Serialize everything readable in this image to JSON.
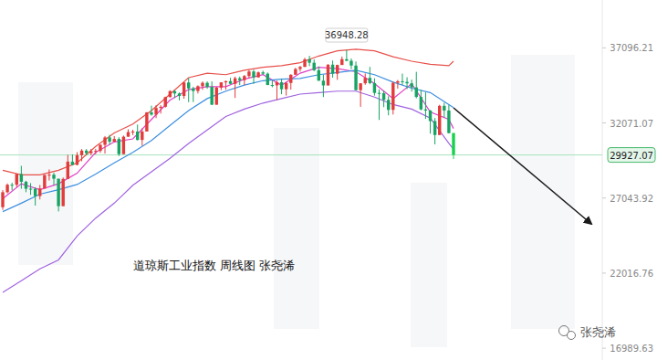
{
  "chart_data": {
    "type": "candlestick",
    "title": "道琼斯工业指数 周线图 张尧浠",
    "watermark": "张尧浠",
    "categories": [
      null,
      null,
      null,
      null,
      null,
      null,
      null,
      null,
      null,
      null,
      null,
      null,
      null,
      null,
      null,
      null,
      null,
      null,
      null,
      null,
      null,
      null,
      null,
      null,
      null,
      null,
      null,
      null,
      null,
      null,
      null,
      null,
      null,
      null,
      null,
      null,
      null,
      null,
      null,
      null,
      null,
      null,
      null,
      null,
      null,
      null,
      null,
      null,
      null,
      null,
      null,
      null,
      null,
      null,
      null,
      null,
      null,
      null,
      null,
      null,
      null,
      null,
      null,
      null,
      null,
      null,
      null,
      null,
      null,
      null,
      null,
      null,
      null,
      null,
      null,
      null,
      null,
      null,
      null,
      null,
      null,
      null,
      null,
      null,
      null,
      null,
      null,
      null,
      null,
      null,
      null,
      null,
      null,
      null,
      null,
      null,
      null,
      null
    ],
    "open": [
      26428,
      27433,
      27931,
      27930,
      28654,
      28133,
      27666,
      27657,
      27174,
      27682,
      28587,
      28606,
      28335,
      26501,
      28323,
      29479,
      29263,
      29910,
      30218,
      30046,
      30179,
      30199,
      30606,
      31098,
      30814,
      30997,
      29983,
      31148,
      31458,
      31494,
      30932,
      31496,
      32779,
      32628,
      33072,
      33153,
      33801,
      34200,
      34043,
      33875,
      34778,
      34382,
      34208,
      34529,
      34756,
      34480,
      33290,
      34434,
      34786,
      34870,
      34688,
      35062,
      34935,
      35209,
      35515,
      35120,
      35456,
      35369,
      34608,
      34584,
      34798,
      34326,
      34746,
      35295,
      35677,
      35820,
      36328,
      36100,
      35602,
      34899,
      34580,
      35971,
      35365,
      35951,
      36338,
      36232,
      35912,
      34265,
      34725,
      35089,
      34738,
      34079,
      34059,
      33615,
      32944,
      34755,
      34861,
      34818,
      34721,
      34451,
      33811,
      32977,
      32899,
      32197,
      31262,
      33213,
      32900,
      31393
    ],
    "high": [
      27574,
      28018,
      28070,
      28655,
      29199,
      28197,
      28042,
      27757,
      27917,
      28598,
      28958,
      28732,
      28335,
      28414,
      29933,
      29964,
      30116,
      30320,
      30319,
      30325,
      30338,
      30637,
      31193,
      31272,
      31188,
      31111,
      31223,
      31643,
      31614,
      31961,
      31705,
      32793,
      33227,
      33259,
      33259,
      33830,
      34257,
      34256,
      34112,
      34811,
      35091,
      34494,
      34588,
      34849,
      34849,
      34849,
      34488,
      34787,
      34893,
      35091,
      35171,
      35171,
      35283,
      35632,
      35631,
      35510,
      35565,
      35446,
      34936,
      34898,
      35008,
      34814,
      35329,
      35765,
      35893,
      36432,
      36566,
      36321,
      35860,
      35300,
      35999,
      36248,
      35970,
      36514,
      36948.28,
      36385,
      36185,
      34728,
      35384,
      35824,
      35061,
      34307,
      34237,
      33856,
      34835,
      34947,
      35372,
      35128,
      34967,
      35493,
      34287,
      34117,
      32935,
      32399,
      33284,
      33417,
      33272,
      31394
    ],
    "low": [
      26247,
      27355,
      27559,
      27768,
      27664,
      27434,
      27256,
      26537,
      26949,
      27681,
      28215,
      27900,
      26144,
      26501,
      28323,
      29223,
      29232,
      29505,
      29911,
      29920,
      29972,
      30070,
      30020,
      30612,
      30811,
      29857,
      29983,
      31148,
      31257,
      30900,
      30547,
      31496,
      32555,
      32394,
      32697,
      33096,
      33774,
      33742,
      33578,
      33689,
      33462,
      33471,
      34038,
      34287,
      34357,
      33271,
      33290,
      34268,
      34296,
      34661,
      33742,
      34605,
      34604,
      35066,
      34690,
      35117,
      35285,
      34603,
      34460,
      33613,
      33994,
      33900,
      34298,
      35295,
      35500,
      35820,
      35870,
      35537,
      34894,
      33800,
      34580,
      35097,
      34952,
      35951,
      36201,
      35667,
      34262,
      33150,
      34623,
      34660,
      33897,
      32272,
      33130,
      32578,
      32633,
      34362,
      34618,
      34336,
      34171,
      33718,
      32913,
      32339,
      31353,
      30636,
      31253,
      32426,
      31362,
      29653
    ],
    "close": [
      27433,
      27931,
      27930,
      28654,
      28133,
      27666,
      27657,
      27174,
      27682,
      28587,
      28606,
      28335,
      26501,
      28323,
      29479,
      29263,
      29910,
      30218,
      30046,
      30179,
      30199,
      30606,
      31098,
      30814,
      30997,
      29983,
      31148,
      31458,
      31494,
      30932,
      31496,
      32779,
      32628,
      33072,
      33153,
      33801,
      34200,
      34043,
      33875,
      34778,
      34382,
      34208,
      34529,
      34756,
      34480,
      33290,
      34434,
      34786,
      34870,
      34688,
      35062,
      34935,
      35209,
      35515,
      35120,
      35456,
      35369,
      34608,
      34584,
      34798,
      34326,
      34746,
      35295,
      35677,
      35820,
      36328,
      36100,
      35602,
      34899,
      34580,
      35971,
      35365,
      35951,
      36338,
      36232,
      35912,
      34265,
      34725,
      35089,
      34738,
      34079,
      34059,
      33615,
      32944,
      34755,
      34861,
      34818,
      34721,
      34451,
      33811,
      32977,
      32899,
      32197,
      31262,
      33213,
      32900,
      31393,
      29927.07
    ],
    "series": [
      {
        "type": "line",
        "color": "#e8504a",
        "x": [
          0,
          4,
          8,
          12,
          16,
          20,
          24,
          28,
          32,
          36,
          40,
          44,
          48,
          52,
          56,
          60,
          64,
          68,
          72,
          76,
          80,
          84,
          88,
          92,
          96,
          97
        ],
        "values": [
          28900,
          28600,
          28600,
          28900,
          29400,
          30500,
          31400,
          32000,
          32900,
          34000,
          35100,
          35400,
          35300,
          35600,
          35800,
          35900,
          36100,
          36550,
          36900,
          37000,
          36900,
          36500,
          36200,
          36000,
          35900,
          36200
        ]
      },
      {
        "type": "line",
        "color": "#e040c8",
        "x": [
          0,
          4,
          8,
          12,
          16,
          20,
          24,
          28,
          32,
          36,
          40,
          44,
          48,
          52,
          56,
          60,
          64,
          68,
          72,
          76,
          80,
          84,
          88,
          92,
          96,
          97
        ],
        "values": [
          27000,
          28000,
          27600,
          28000,
          28700,
          30100,
          30800,
          31000,
          32300,
          33600,
          34300,
          34500,
          34500,
          35000,
          35300,
          34600,
          35400,
          35800,
          35700,
          35500,
          34700,
          33700,
          34700,
          32800,
          32300,
          31700
        ]
      },
      {
        "type": "line",
        "color": "#3d8fe0",
        "x": [
          0,
          4,
          8,
          12,
          16,
          20,
          24,
          28,
          32,
          36,
          40,
          44,
          48,
          52,
          56,
          60,
          64,
          68,
          72,
          76,
          80,
          84,
          88,
          92,
          96,
          97
        ],
        "values": [
          26130,
          26700,
          27300,
          27600,
          27950,
          28650,
          29400,
          30100,
          30900,
          31900,
          32900,
          33700,
          34200,
          34600,
          34900,
          35000,
          35050,
          35300,
          35450,
          35600,
          35300,
          34800,
          34400,
          34100,
          33300,
          33100
        ]
      },
      {
        "type": "line",
        "color": "#a063e0",
        "x": [
          0,
          4,
          8,
          12,
          16,
          20,
          24,
          28,
          32,
          36,
          40,
          44,
          48,
          52,
          56,
          60,
          64,
          68,
          72,
          76,
          80,
          84,
          88,
          92,
          96,
          97
        ],
        "values": [
          20730,
          21500,
          22300,
          22900,
          24500,
          25700,
          26700,
          27900,
          28800,
          29700,
          30700,
          31600,
          32500,
          33000,
          33400,
          33700,
          34000,
          34100,
          34200,
          34200,
          33800,
          33300,
          33000,
          32400,
          30700,
          30300
        ]
      }
    ],
    "high_label": 36948.28,
    "last_price": 29927.07,
    "ylim": [
      16200,
      40300
    ],
    "yticks": [
      16989.63,
      22016.76,
      27043.92,
      32071.07,
      37096.21
    ],
    "grid": false,
    "tick_labels": "y"
  }
}
